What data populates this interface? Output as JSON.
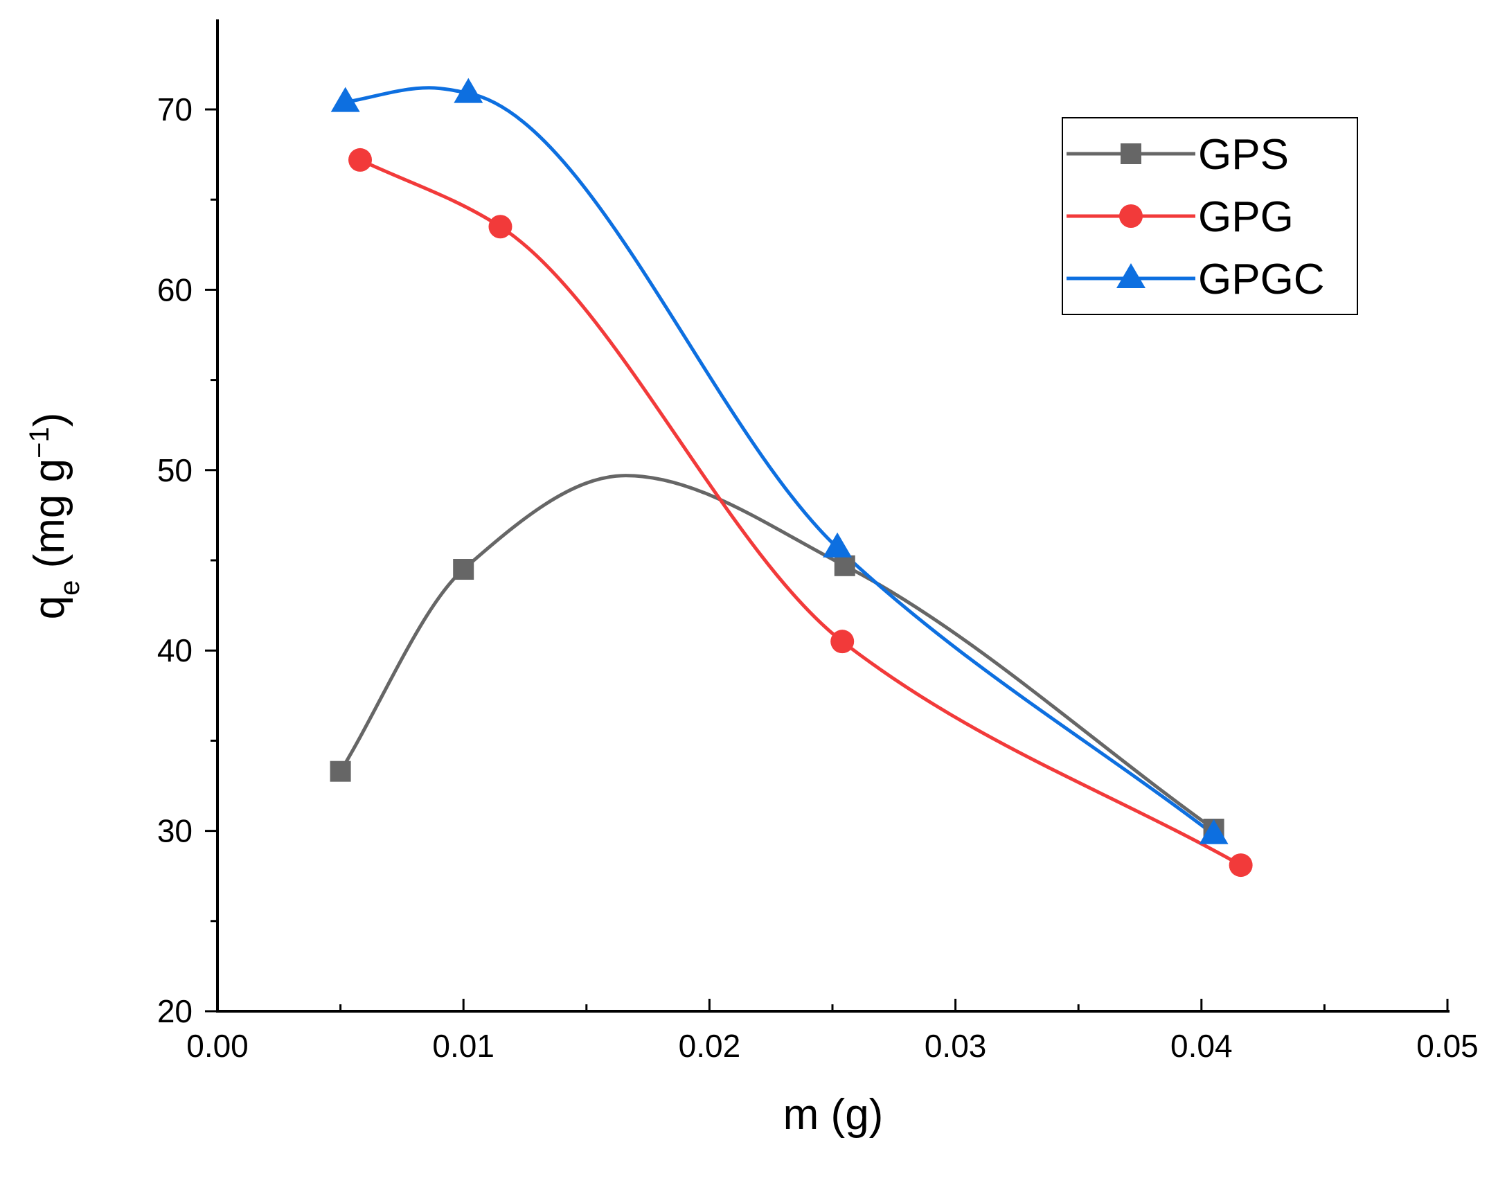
{
  "chart_data": {
    "type": "line",
    "title": "",
    "xlabel": "m (g)",
    "ylabel": {
      "main": "q",
      "sub": "e",
      "unit_open": " (mg g",
      "sup": "−1",
      "unit_close": ")"
    },
    "xlim": [
      0.0,
      0.05
    ],
    "ylim": [
      20,
      75
    ],
    "x_major_ticks": [
      0.0,
      0.01,
      0.02,
      0.03,
      0.04,
      0.05
    ],
    "x_tick_labels": [
      "0.00",
      "0.01",
      "0.02",
      "0.03",
      "0.04",
      "0.05"
    ],
    "x_minor_ticks": [
      0.005,
      0.015,
      0.025,
      0.035,
      0.045
    ],
    "y_major_ticks": [
      20,
      30,
      40,
      50,
      60,
      70
    ],
    "y_tick_labels": [
      "20",
      "30",
      "40",
      "50",
      "60",
      "70"
    ],
    "y_minor_ticks": [
      25,
      35,
      45,
      55,
      65
    ],
    "grid": false,
    "legend_position": "top-right",
    "series": [
      {
        "name": "GPS",
        "color": "#666666",
        "marker": "square",
        "x": [
          0.005,
          0.01,
          0.0255,
          0.0405
        ],
        "y": [
          33.3,
          44.5,
          44.7,
          30.1
        ],
        "curve_peak": {
          "x": 0.0166,
          "y": 49.7
        }
      },
      {
        "name": "GPG",
        "color": "#f23a3a",
        "marker": "circle",
        "x": [
          0.0058,
          0.0115,
          0.0254,
          0.0416
        ],
        "y": [
          67.2,
          63.5,
          40.5,
          28.1
        ]
      },
      {
        "name": "GPGC",
        "color": "#0d6fe0",
        "marker": "triangle",
        "x": [
          0.0052,
          0.0102,
          0.0252,
          0.0405
        ],
        "y": [
          70.4,
          70.9,
          45.7,
          29.8
        ],
        "curve_peak": {
          "x": 0.0086,
          "y": 71.2
        }
      }
    ]
  }
}
